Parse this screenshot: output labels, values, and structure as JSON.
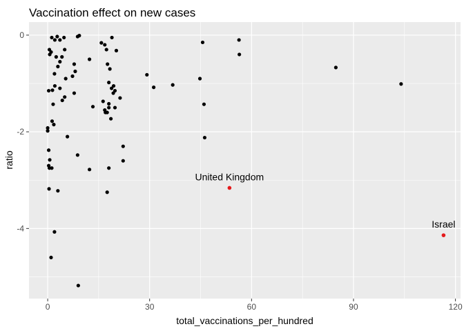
{
  "chart_data": {
    "type": "scatter",
    "title": "Vaccination effect on new cases",
    "xlabel": "total_vaccinations_per_hundred",
    "ylabel": "ratio",
    "xlim": [
      -5.5,
      121.5
    ],
    "ylim": [
      -5.45,
      0.27
    ],
    "x_ticks": [
      0,
      30,
      60,
      90,
      120
    ],
    "y_ticks": [
      0,
      -2,
      -4
    ],
    "grid": true,
    "background_color": "#ebebeb",
    "grid_color": "#ffffff",
    "point_color": "#000000",
    "highlight_color": "#e41a1c",
    "points": [
      {
        "x": 0.5,
        "y": -0.3
      },
      {
        "x": 1.0,
        "y": -0.35
      },
      {
        "x": 1.2,
        "y": -0.05
      },
      {
        "x": 0.6,
        "y": -0.4
      },
      {
        "x": 2.1,
        "y": -0.1
      },
      {
        "x": 2.5,
        "y": -0.45
      },
      {
        "x": 3.0,
        "y": -0.65
      },
      {
        "x": 3.6,
        "y": -0.1
      },
      {
        "x": 2.8,
        "y": -0.03
      },
      {
        "x": 4.8,
        "y": -0.05
      },
      {
        "x": 5.0,
        "y": -0.3
      },
      {
        "x": 4.2,
        "y": -0.45
      },
      {
        "x": 3.6,
        "y": -0.55
      },
      {
        "x": 5.3,
        "y": -0.9
      },
      {
        "x": 2.0,
        "y": -0.8
      },
      {
        "x": 7.3,
        "y": -0.85
      },
      {
        "x": 7.8,
        "y": -0.6
      },
      {
        "x": 8.1,
        "y": -0.75
      },
      {
        "x": 8.8,
        "y": -0.03
      },
      {
        "x": 9.3,
        "y": -0.01
      },
      {
        "x": 0.3,
        "y": -1.15
      },
      {
        "x": 1.4,
        "y": -1.14
      },
      {
        "x": 2.1,
        "y": -1.05
      },
      {
        "x": 3.6,
        "y": -1.1
      },
      {
        "x": 4.3,
        "y": -1.35
      },
      {
        "x": 5.0,
        "y": -1.28
      },
      {
        "x": 1.6,
        "y": -1.43
      },
      {
        "x": 7.8,
        "y": -1.2
      },
      {
        "x": 12.3,
        "y": -0.5
      },
      {
        "x": 13.3,
        "y": -1.48
      },
      {
        "x": 15.8,
        "y": -0.16
      },
      {
        "x": 16.3,
        "y": -1.37
      },
      {
        "x": 16.8,
        "y": -1.55
      },
      {
        "x": 16.8,
        "y": -0.2
      },
      {
        "x": 17.3,
        "y": -0.3
      },
      {
        "x": 17.6,
        "y": -0.6
      },
      {
        "x": 18.3,
        "y": -0.7
      },
      {
        "x": 18.9,
        "y": -0.05
      },
      {
        "x": 19.3,
        "y": -1.2
      },
      {
        "x": 20.2,
        "y": -0.32
      },
      {
        "x": 18.0,
        "y": -0.98
      },
      {
        "x": 18.8,
        "y": -1.1
      },
      {
        "x": 19.4,
        "y": -1.05
      },
      {
        "x": 19.8,
        "y": -1.15
      },
      {
        "x": 17.0,
        "y": -1.6
      },
      {
        "x": 18.0,
        "y": -1.42
      },
      {
        "x": 18.0,
        "y": -1.5
      },
      {
        "x": 17.5,
        "y": -1.6
      },
      {
        "x": 19.8,
        "y": -1.5
      },
      {
        "x": 21.3,
        "y": -1.3
      },
      {
        "x": 18.6,
        "y": -1.73
      },
      {
        "x": 0.0,
        "y": -1.92
      },
      {
        "x": 0.0,
        "y": -1.98
      },
      {
        "x": 1.3,
        "y": -1.78
      },
      {
        "x": 1.8,
        "y": -1.85
      },
      {
        "x": 5.8,
        "y": -2.1
      },
      {
        "x": 0.3,
        "y": -2.38
      },
      {
        "x": 0.6,
        "y": -2.58
      },
      {
        "x": 0.3,
        "y": -2.7
      },
      {
        "x": 0.5,
        "y": -2.75
      },
      {
        "x": 1.2,
        "y": -2.75
      },
      {
        "x": 8.8,
        "y": -2.48
      },
      {
        "x": 12.3,
        "y": -2.78
      },
      {
        "x": 18.0,
        "y": -2.75
      },
      {
        "x": 22.2,
        "y": -2.3
      },
      {
        "x": 22.2,
        "y": -2.6
      },
      {
        "x": 0.4,
        "y": -3.18
      },
      {
        "x": 3.0,
        "y": -3.22
      },
      {
        "x": 17.5,
        "y": -3.25
      },
      {
        "x": 2.0,
        "y": -4.07
      },
      {
        "x": 1.0,
        "y": -4.6
      },
      {
        "x": 9.0,
        "y": -5.18
      },
      {
        "x": 29.2,
        "y": -0.82
      },
      {
        "x": 31.2,
        "y": -1.08
      },
      {
        "x": 36.8,
        "y": -1.03
      },
      {
        "x": 44.8,
        "y": -0.9
      },
      {
        "x": 45.6,
        "y": -0.15
      },
      {
        "x": 46.0,
        "y": -1.43
      },
      {
        "x": 46.2,
        "y": -2.12
      },
      {
        "x": 56.3,
        "y": -0.1
      },
      {
        "x": 56.4,
        "y": -0.4
      },
      {
        "x": 84.8,
        "y": -0.67
      },
      {
        "x": 104.0,
        "y": -1.01
      }
    ],
    "highlighted": [
      {
        "label": "United Kingdom",
        "x": 53.5,
        "y": -3.16
      },
      {
        "label": "Israel",
        "x": 116.5,
        "y": -4.14
      }
    ]
  }
}
